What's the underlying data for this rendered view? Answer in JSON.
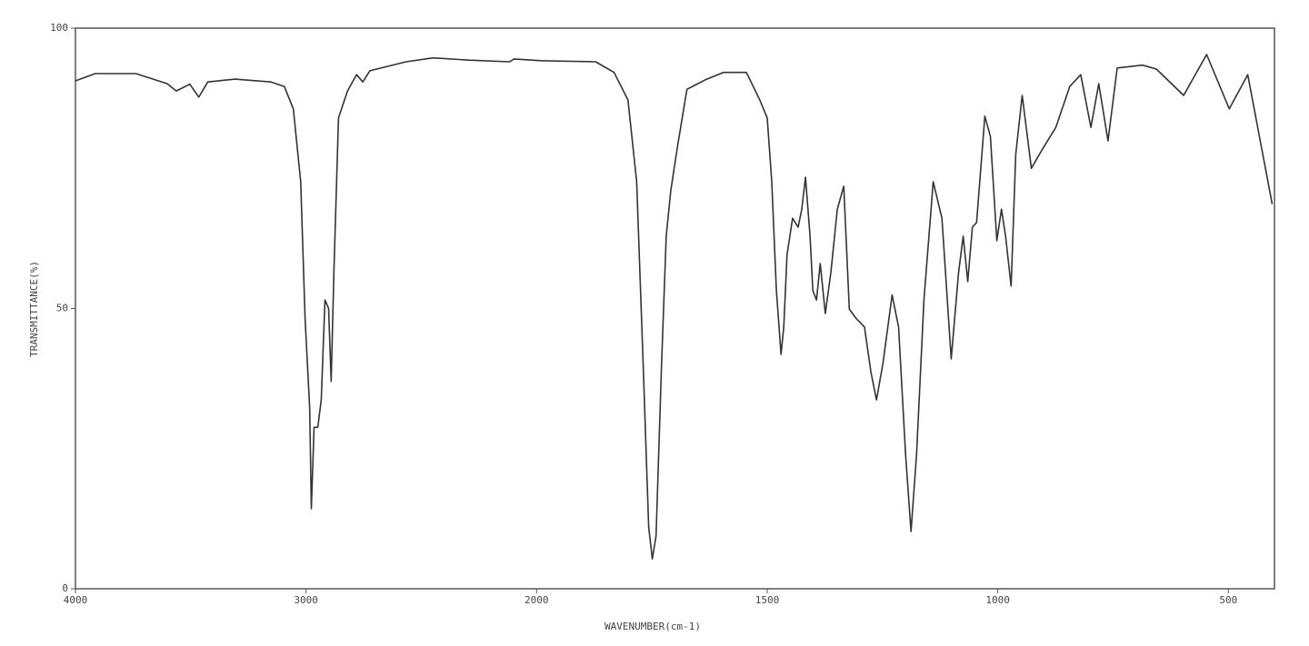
{
  "chart_data": {
    "type": "line",
    "xlabel": "WAVENUMBER(cm-1)",
    "ylabel": "TRANSMITTANCE(%)",
    "xlim": [
      4000,
      400
    ],
    "xscale_change": {
      "at": 2000,
      "factor": 2
    },
    "xticks": [
      4000,
      3000,
      2000,
      1500,
      1000,
      500
    ],
    "ylim": [
      0,
      100
    ],
    "yticks": [
      0,
      50,
      100
    ],
    "grid": false,
    "x": [
      4000,
      3914,
      3738,
      3602,
      3563,
      3504,
      3465,
      3426,
      3309,
      3152,
      3094,
      3055,
      3023,
      3004,
      2984,
      2977,
      2965,
      2949,
      2934,
      2918,
      2902,
      2891,
      2879,
      2859,
      2820,
      2781,
      2754,
      2723,
      2566,
      2449,
      2293,
      2117,
      2098,
      1990,
      1872,
      1832,
      1802,
      1783,
      1769,
      1757,
      1749,
      1741,
      1729,
      1719,
      1709,
      1694,
      1674,
      1634,
      1595,
      1545,
      1516,
      1500,
      1490,
      1480,
      1470,
      1464,
      1457,
      1445,
      1433,
      1425,
      1417,
      1407,
      1401,
      1393,
      1385,
      1374,
      1362,
      1348,
      1334,
      1322,
      1308,
      1289,
      1275,
      1263,
      1249,
      1229,
      1215,
      1200,
      1188,
      1176,
      1160,
      1140,
      1121,
      1101,
      1085,
      1075,
      1065,
      1055,
      1046,
      1028,
      1016,
      1002,
      992,
      983,
      971,
      961,
      947,
      927,
      904,
      874,
      844,
      820,
      798,
      781,
      761,
      741,
      686,
      656,
      597,
      547,
      498,
      458,
      429,
      405
    ],
    "series": [
      {
        "color": "#333333",
        "values": [
          90.6,
          91.9,
          91.9,
          90.1,
          88.8,
          90.0,
          87.7,
          90.4,
          90.9,
          90.4,
          89.6,
          85.6,
          72.6,
          48.3,
          32.1,
          14.3,
          28.8,
          28.8,
          33.7,
          51.5,
          50,
          37,
          56.4,
          84,
          88.8,
          91.7,
          90.4,
          92.4,
          94,
          94.7,
          94.3,
          94,
          94.5,
          94.2,
          94,
          92.1,
          87.2,
          72.6,
          40.2,
          11,
          5.3,
          9.4,
          40.2,
          62.9,
          71,
          79.1,
          89.1,
          90.8,
          92.1,
          92.1,
          87.2,
          84,
          72.6,
          53.2,
          41.8,
          46.7,
          59.6,
          66.1,
          64.5,
          67.7,
          73.4,
          62.9,
          53.2,
          51.5,
          58,
          49.1,
          56.4,
          67.7,
          71.8,
          49.9,
          48.3,
          46.7,
          38.6,
          33.7,
          40.2,
          52.4,
          46.7,
          24,
          10.2,
          24,
          51.5,
          72.6,
          66.1,
          41,
          56.4,
          62.9,
          54.8,
          64.5,
          65.3,
          84.3,
          80.7,
          62.1,
          67.7,
          62.9,
          54,
          77.5,
          88,
          75,
          78.3,
          82.3,
          89.6,
          91.7,
          82.3,
          90.1,
          79.9,
          92.9,
          93.4,
          92.7,
          88,
          95.3,
          85.6,
          91.7,
          79.1,
          68.6
        ]
      }
    ]
  }
}
